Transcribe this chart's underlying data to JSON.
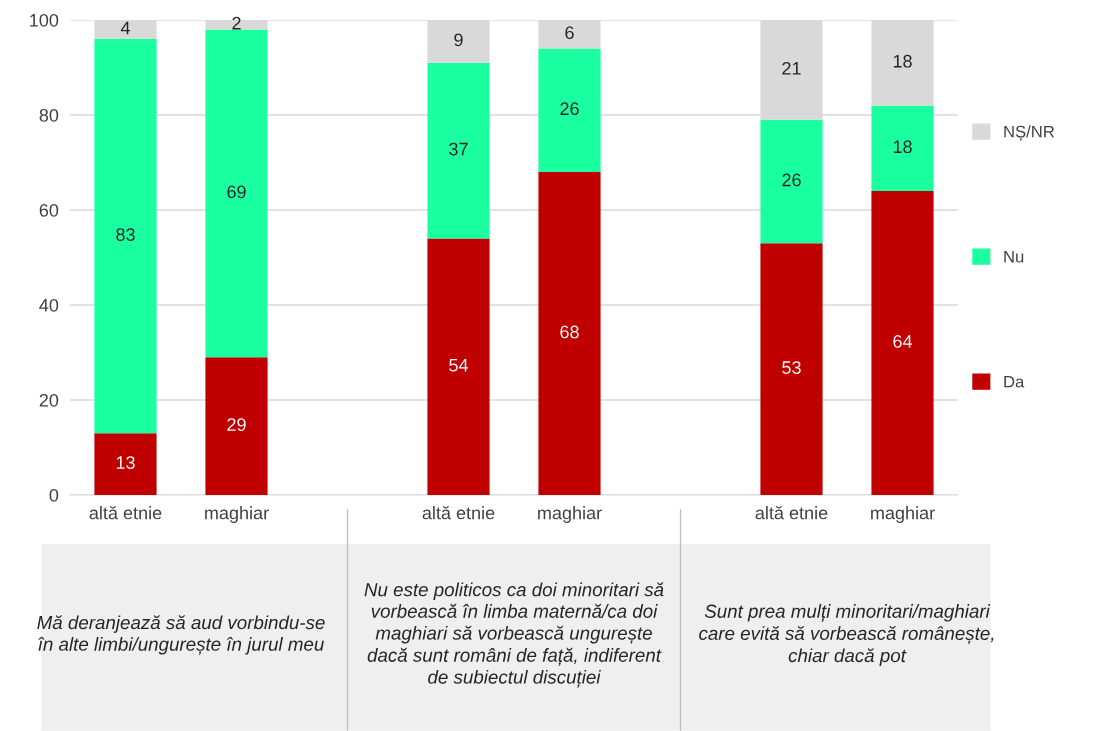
{
  "chart_data": {
    "type": "bar",
    "stacked": true,
    "categories": [
      "altă etnie",
      "maghiar",
      null,
      "altă etnie",
      "maghiar",
      null,
      "altă etnie",
      "maghiar"
    ],
    "series": [
      {
        "name": "Da",
        "color": "#c00000",
        "values": [
          13,
          29,
          null,
          54,
          68,
          null,
          53,
          64
        ]
      },
      {
        "name": "Nu",
        "color": "#1affa0",
        "values": [
          83,
          69,
          null,
          37,
          26,
          null,
          26,
          18
        ]
      },
      {
        "name": "NȘ/NR",
        "color": "#d9d9d9",
        "values": [
          4,
          2,
          null,
          9,
          6,
          null,
          21,
          18
        ]
      }
    ],
    "ylim": [
      0,
      100
    ],
    "yticks": [
      0,
      20,
      40,
      60,
      80,
      100
    ],
    "grid": "y",
    "legend": "right",
    "data_labels": true,
    "annotations": [
      "Mă deranjează să aud vorbindu-se în alte limbi/ungurește în jurul meu",
      "Nu este politicos ca doi minoritari să vorbească în limba maternă/ca doi maghiari să vorbească ungurește dacă sunt români de față, indiferent de subiectul discuției",
      "Sunt prea mulți minoritari/maghiari care evită să vorbească românește, chiar dacă pot"
    ]
  }
}
